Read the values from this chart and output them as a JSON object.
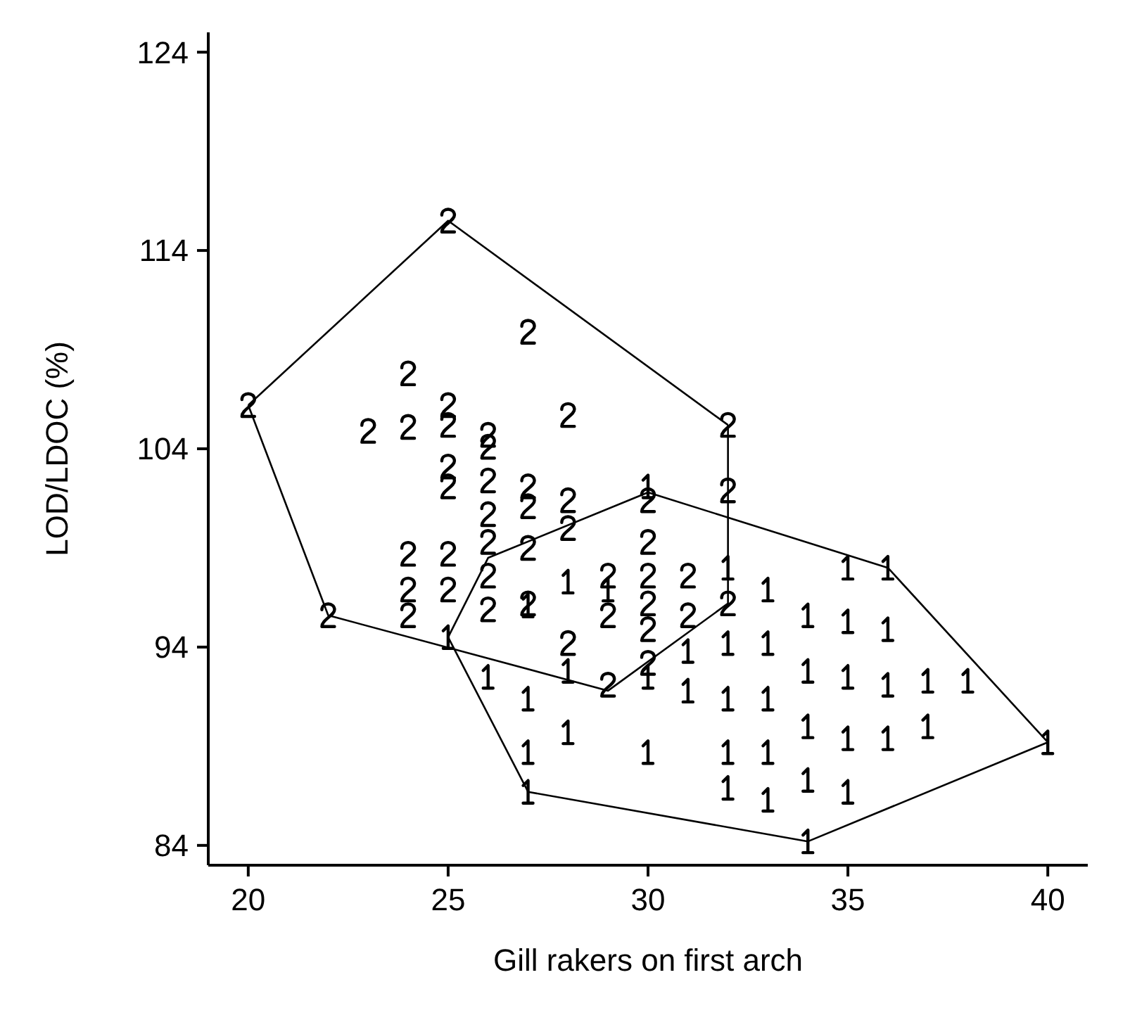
{
  "chart_data": {
    "type": "scatter",
    "xlabel": "Gill rakers on first arch",
    "ylabel": "LOD/LDOC (%)",
    "xlim": [
      19,
      41
    ],
    "ylim": [
      83,
      125
    ],
    "xticks": [
      20,
      25,
      30,
      35,
      40
    ],
    "yticks": [
      84,
      94,
      104,
      114,
      124
    ],
    "grid": false,
    "series": [
      {
        "color": "#000000",
        "x": [
          20,
          25,
          27,
          24,
          23,
          24,
          25,
          25,
          26,
          26,
          28,
          32,
          32,
          25,
          25,
          26,
          26,
          27,
          27,
          28,
          28,
          24,
          24,
          24,
          25,
          25,
          26,
          26,
          26,
          27,
          27,
          22,
          28,
          29,
          29,
          30,
          30,
          30,
          30,
          30,
          30,
          29,
          31,
          31,
          32
        ],
        "values": [
          106.2,
          115.5,
          109.9,
          107.8,
          104.9,
          105.1,
          106.2,
          105.2,
          104.7,
          104.1,
          105.7,
          105.2,
          101.9,
          103.1,
          102.1,
          102.4,
          100.7,
          102.1,
          101.1,
          101.4,
          100.0,
          98.7,
          96.9,
          95.6,
          98.7,
          96.9,
          99.3,
          97.6,
          95.9,
          99.0,
          96.2,
          95.6,
          94.2,
          97.6,
          95.6,
          101.4,
          99.3,
          97.6,
          96.2,
          94.9,
          93.2,
          92.1,
          97.6,
          95.6,
          96.2
        ]
      },
      {
        "color": "#000000",
        "x": [
          30,
          36,
          40,
          34,
          27,
          25,
          26,
          27,
          27,
          28,
          30,
          30,
          31,
          32,
          32,
          32,
          32,
          32,
          33,
          33,
          33,
          33,
          33,
          34,
          34,
          34,
          34,
          35,
          35,
          35,
          35,
          35,
          36,
          36,
          36,
          37,
          37,
          38,
          27,
          28,
          29,
          28,
          31
        ],
        "values": [
          102.1,
          98.0,
          89.2,
          84.2,
          86.7,
          94.5,
          92.5,
          91.4,
          88.7,
          89.7,
          92.5,
          88.7,
          91.8,
          98.0,
          94.2,
          91.4,
          88.7,
          86.9,
          96.9,
          94.2,
          91.4,
          88.7,
          86.3,
          95.6,
          92.8,
          90.0,
          87.3,
          98.0,
          95.3,
          92.5,
          89.4,
          86.7,
          94.9,
          92.1,
          89.4,
          92.3,
          90.0,
          92.3,
          96.1,
          97.3,
          96.9,
          92.8,
          93.8
        ]
      },
      {
        "type": "line",
        "color": "#000000",
        "x": [
          20,
          25,
          32
        ],
        "values": [
          106.2,
          115.5,
          105.2
        ]
      },
      {
        "type": "line",
        "color": "#000000",
        "x": [
          20,
          22,
          29,
          32,
          32
        ],
        "values": [
          106.2,
          95.6,
          91.8,
          96.2,
          105.2
        ]
      },
      {
        "type": "line",
        "color": "#000000",
        "x": [
          25,
          26,
          30,
          36,
          40
        ],
        "values": [
          94.5,
          98.5,
          101.8,
          98.0,
          89.2
        ]
      },
      {
        "type": "line",
        "color": "#000000",
        "x": [
          25,
          27,
          34,
          40
        ],
        "values": [
          94.5,
          86.7,
          84.2,
          89.2
        ]
      }
    ]
  }
}
